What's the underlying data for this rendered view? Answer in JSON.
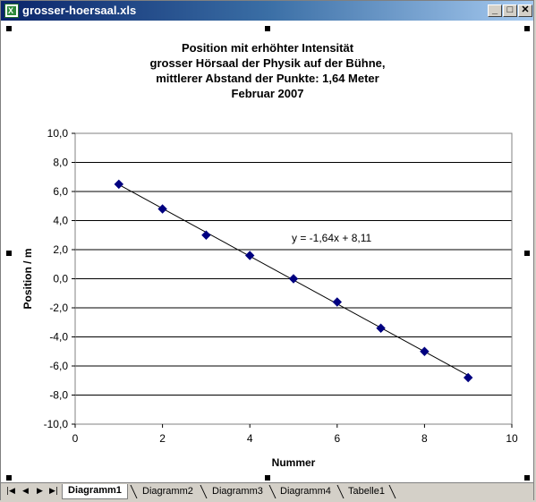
{
  "window": {
    "title": "grosser-hoersaal.xls",
    "buttons": {
      "minimize": "_",
      "maximize": "□",
      "close": "✕"
    }
  },
  "sheet_tabs": {
    "nav": [
      "|◀",
      "◀",
      "▶",
      "▶|"
    ],
    "tabs": [
      {
        "label": "Diagramm1",
        "active": true
      },
      {
        "label": "Diagramm2",
        "active": false
      },
      {
        "label": "Diagramm3",
        "active": false
      },
      {
        "label": "Diagramm4",
        "active": false
      },
      {
        "label": "Tabelle1",
        "active": false
      }
    ]
  },
  "chart_data": {
    "type": "scatter",
    "title_lines": [
      "Position mit erhöhter Intensität",
      "grosser Hörsaal der Physik auf der Bühne,",
      "mittlerer Abstand der Punkte: 1,64 Meter",
      "Februar 2007"
    ],
    "xlabel": "Nummer",
    "ylabel": "Position / m",
    "xlim": [
      0,
      10
    ],
    "ylim": [
      -10,
      10
    ],
    "x_ticks": [
      "0",
      "2",
      "4",
      "6",
      "8",
      "10"
    ],
    "y_ticks": [
      "10,0",
      "8,0",
      "6,0",
      "4,0",
      "2,0",
      "0,0",
      "-2,0",
      "-4,0",
      "-6,0",
      "-8,0",
      "-10,0"
    ],
    "gridlines": "horizontal",
    "marker_color": "#000080",
    "x": [
      1,
      2,
      3,
      4,
      5,
      6,
      7,
      8,
      9
    ],
    "y": [
      6.5,
      4.8,
      3.0,
      1.6,
      0.0,
      -1.6,
      -3.4,
      -5.0,
      -6.8
    ],
    "trendline": {
      "slope": -1.64,
      "intercept": 8.11,
      "x_range": [
        1,
        9
      ],
      "equation": "y = -1,64x + 8,11"
    }
  }
}
